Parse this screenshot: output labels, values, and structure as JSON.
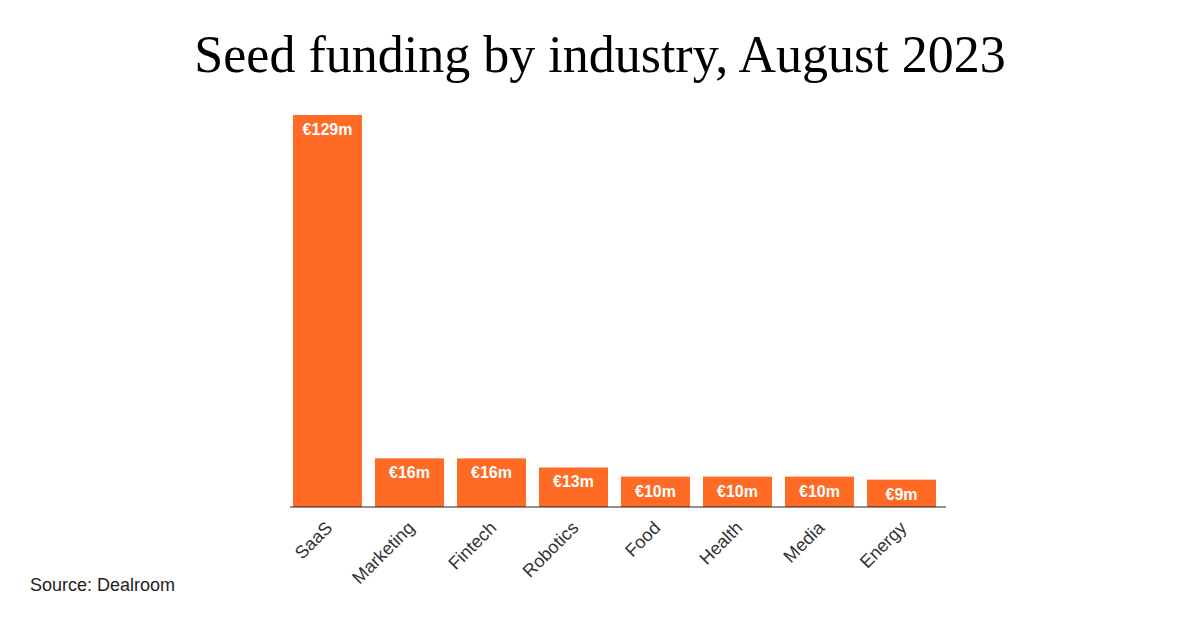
{
  "chart_data": {
    "type": "bar",
    "title": "Seed funding by industry, August 2023",
    "categories": [
      "SaaS",
      "Marketing",
      "Fintech",
      "Robotics",
      "Food",
      "Health",
      "Media",
      "Energy"
    ],
    "values": [
      129,
      16,
      16,
      13,
      10,
      10,
      10,
      9
    ],
    "value_labels": [
      "€129m",
      "€16m",
      "€16m",
      "€13m",
      "€10m",
      "€10m",
      "€10m",
      "€9m"
    ],
    "data_labels": true,
    "tick_labels": "x",
    "color": "#ff6b24",
    "ylim": [
      0,
      129
    ],
    "source": "Source: Dealroom"
  }
}
